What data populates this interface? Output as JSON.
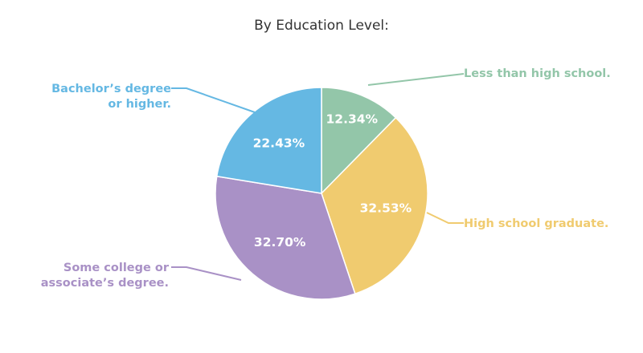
{
  "chart_data": {
    "type": "pie",
    "title": "By Education Level:",
    "slices": [
      {
        "label_lines": [
          "Less than high school."
        ],
        "value": 12.34,
        "value_label": "12.34%",
        "color": "#93c6a9"
      },
      {
        "label_lines": [
          "High school graduate."
        ],
        "value": 32.53,
        "value_label": "32.53%",
        "color": "#f0cb6f"
      },
      {
        "label_lines": [
          "Some college or",
          "associate’s degree."
        ],
        "value": 32.7,
        "value_label": "32.70%",
        "color": "#a991c6"
      },
      {
        "label_lines": [
          "Bachelor’s degree",
          "or higher."
        ],
        "value": 22.43,
        "value_label": "22.43%",
        "color": "#65b8e3"
      }
    ],
    "start_angle": "12 o'clock",
    "direction": "clockwise"
  }
}
